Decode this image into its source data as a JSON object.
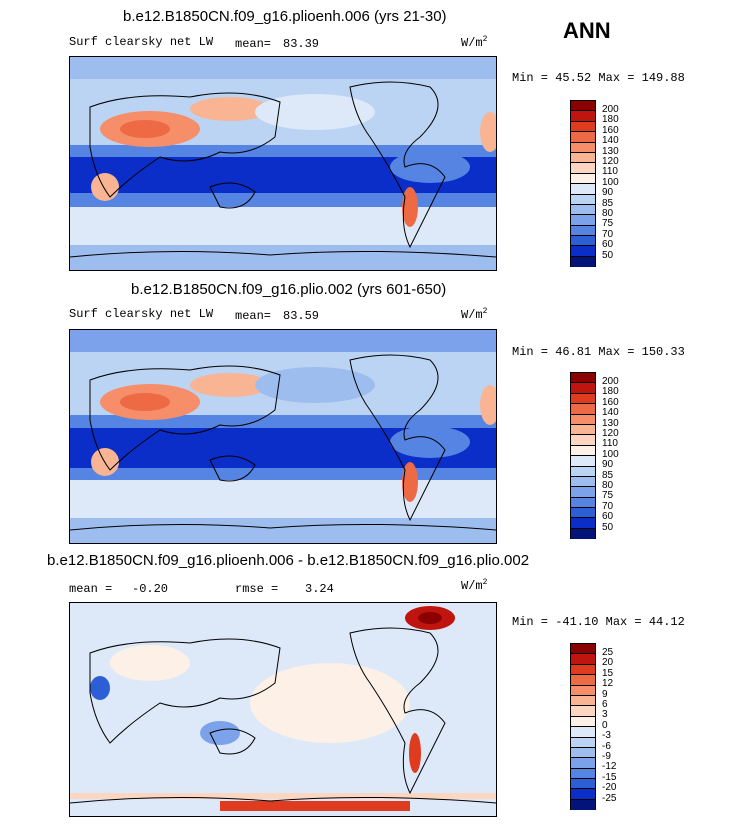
{
  "season": "ANN",
  "panels": [
    {
      "title": "b.e12.B1850CN.f09_g16.plioenh.006 (yrs 21-30)",
      "variable": "Surf clearsky net LW",
      "mean_label": "mean=",
      "mean_value": "83.39",
      "units": "W/m",
      "units_exp": "2",
      "minmax": "Min =  45.52 Max = 149.88",
      "colorbar_ticks": [
        "200",
        "180",
        "160",
        "140",
        "130",
        "120",
        "110",
        "100",
        "90",
        "85",
        "80",
        "75",
        "70",
        "60",
        "50"
      ]
    },
    {
      "title": "b.e12.B1850CN.f09_g16.plio.002 (yrs 601-650)",
      "variable": "Surf clearsky net LW",
      "mean_label": "mean=",
      "mean_value": "83.59",
      "units": "W/m",
      "units_exp": "2",
      "minmax": "Min =  46.81 Max = 150.33",
      "colorbar_ticks": [
        "200",
        "180",
        "160",
        "140",
        "130",
        "120",
        "110",
        "100",
        "90",
        "85",
        "80",
        "75",
        "70",
        "60",
        "50"
      ]
    },
    {
      "title": "b.e12.B1850CN.f09_g16.plioenh.006 - b.e12.B1850CN.f09_g16.plio.002",
      "mean_label": "mean =",
      "mean_value": "-0.20",
      "rmse_label": "rmse =",
      "rmse_value": "3.24",
      "units": "W/m",
      "units_exp": "2",
      "minmax": "Min = -41.10 Max =  44.12",
      "colorbar_ticks": [
        "25",
        "20",
        "15",
        "12",
        "9",
        "6",
        "3",
        "0",
        "-3",
        "-6",
        "-9",
        "-12",
        "-15",
        "-20",
        "-25"
      ]
    }
  ],
  "colors": {
    "abs_scale": [
      "#8b0000",
      "#c0150f",
      "#df3b1f",
      "#ee6a45",
      "#f68e6a",
      "#f9b493",
      "#fcd6c0",
      "#fdf0e6",
      "#dde9f8",
      "#bcd4f3",
      "#9ebdef",
      "#7ba2ea",
      "#5684e2",
      "#2c5fd6",
      "#0b2ec8",
      "#04137a"
    ],
    "diff_scale": [
      "#8b0000",
      "#c0150f",
      "#df3b1f",
      "#ee6a45",
      "#f68e6a",
      "#f9b493",
      "#fcd6c0",
      "#fdf0e6",
      "#dde9f8",
      "#bcd4f3",
      "#9ebdef",
      "#7ba2ea",
      "#5684e2",
      "#2c5fd6",
      "#0b2ec8",
      "#04137a"
    ]
  }
}
